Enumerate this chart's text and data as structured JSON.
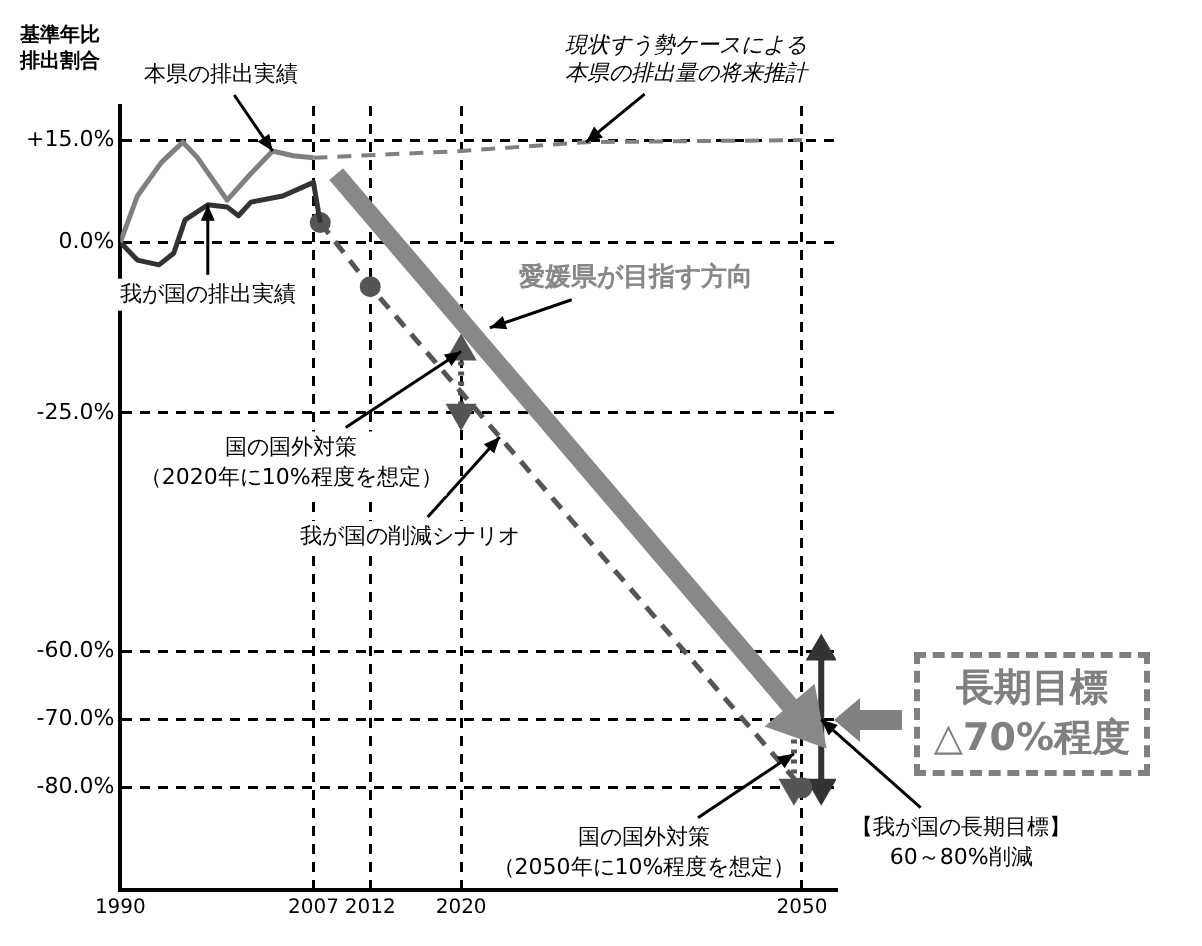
{
  "chart_data": {
    "type": "line",
    "ylabel": "基準年比排出割合",
    "xlim": [
      1990,
      2053
    ],
    "xticks": [
      1990,
      2007,
      2012,
      2020,
      2050
    ],
    "ylim": [
      -95,
      20
    ],
    "yticks": [
      {
        "value": 15,
        "label": "+15.0%"
      },
      {
        "value": 0,
        "label": "0.0%"
      },
      {
        "value": -25,
        "label": "-25.0%"
      },
      {
        "value": -60,
        "label": "-60.0%"
      },
      {
        "value": -70,
        "label": "-70.0%"
      },
      {
        "value": -80,
        "label": "-80.0%"
      }
    ],
    "grid": true,
    "marker": "none",
    "series": [
      {
        "name": "本県の排出実績",
        "color": "#808080",
        "x": [
          1990,
          1991.5,
          1993.6,
          1995.5,
          1996.8,
          1999.4,
          2001.5,
          2003.4,
          2005.2,
          2007
        ],
        "values": [
          0,
          6.8,
          11.7,
          14.7,
          12.4,
          6.2,
          10.1,
          13.4,
          12.7,
          12.4
        ]
      },
      {
        "name": "我が国の排出実績",
        "color": "#333333",
        "x": [
          1990,
          1991.5,
          1993.4,
          1994.7,
          1995.7,
          1997.7,
          1999.4,
          2000.4,
          2001.5,
          2004.3,
          2007,
          2007.6
        ],
        "values": [
          0,
          -2.6,
          -3.3,
          -1.6,
          3.3,
          5.5,
          5.2,
          3.9,
          5.9,
          6.8,
          8.8,
          2.9
        ]
      },
      {
        "name": "現状すう勢ケースによる本県の排出量の将来推計",
        "color": "#808080",
        "line_style": "dashed",
        "x": [
          2007,
          2020,
          2031,
          2050
        ],
        "values": [
          12.4,
          13.4,
          14.7,
          15
        ]
      },
      {
        "name": "我が国の削減シナリオ",
        "color": "#555555",
        "line_style": "dashed",
        "marker": "circle",
        "x": [
          2007.6,
          2012,
          2050
        ],
        "values": [
          2.9,
          -6.5,
          -80
        ]
      },
      {
        "name": "愛媛県が目指す方向",
        "color": "#888888",
        "marker": "triangle",
        "x": [
          2009,
          2050
        ],
        "values": [
          10,
          -70
        ]
      },
      {
        "color": "#555555",
        "line_style": "dotted",
        "marker": "triangle",
        "x": [
          2020,
          2020
        ],
        "values": [
          -16,
          -25
        ]
      },
      {
        "color": "#555555",
        "line_style": "dotted",
        "marker": "triangle",
        "x": [
          2049.3,
          2049.3
        ],
        "values": [
          -70,
          -80
        ]
      },
      {
        "color": "#333333",
        "marker": "triangle",
        "x": [
          2051.7,
          2051.7
        ],
        "values": [
          -60,
          -80
        ]
      }
    ],
    "annotations": [
      {
        "text": "国の国外対策（2020年に10%程度を想定）",
        "x": 2020,
        "y": -16
      },
      {
        "text": "国の国外対策（2050年に10%程度を想定）",
        "x": 2049.3,
        "y": -75
      },
      {
        "text": "【我が国の長期目標】60～80%削減",
        "x": 2051.7,
        "y": -70
      },
      "長期目標△70%程度"
    ]
  }
}
